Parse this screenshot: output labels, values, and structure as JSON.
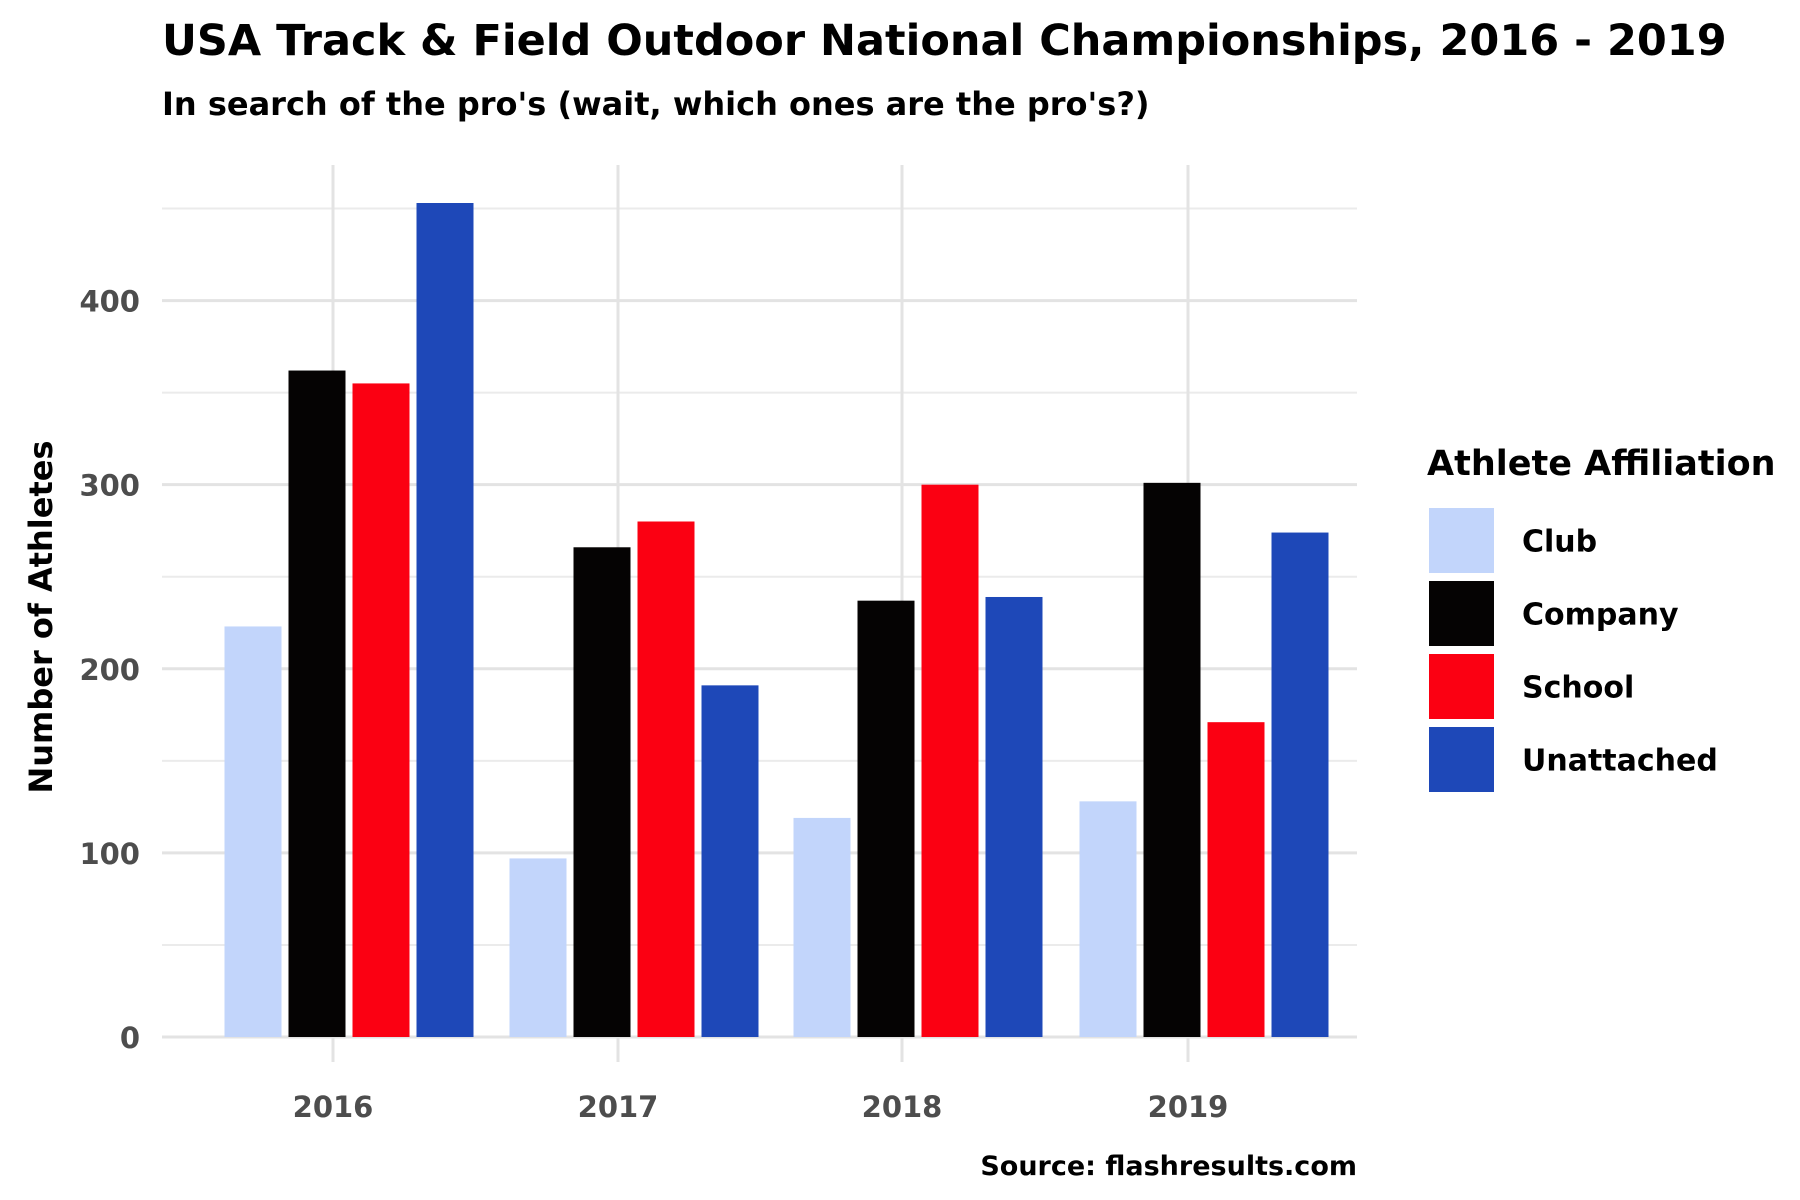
{
  "chart_data": {
    "type": "bar",
    "title": "USA Track & Field Outdoor National Championships, 2016 - 2019",
    "subtitle": "In search of the pro's (wait, which ones are the pro's?)",
    "xlabel": "",
    "ylabel": "Number of Athletes",
    "categories": [
      "2016",
      "2017",
      "2018",
      "2019"
    ],
    "series": [
      {
        "name": "Club",
        "color": "#c2d5fb",
        "values": [
          223,
          97,
          119,
          128
        ]
      },
      {
        "name": "Company",
        "color": "#050303",
        "values": [
          362,
          266,
          237,
          301
        ]
      },
      {
        "name": "School",
        "color": "#fb0012",
        "values": [
          355,
          280,
          300,
          171
        ]
      },
      {
        "name": "Unattached",
        "color": "#1e48b8",
        "values": [
          453,
          191,
          239,
          274
        ]
      }
    ],
    "ylim": [
      0,
      453
    ],
    "yticks": [
      0,
      100,
      200,
      300,
      400
    ],
    "grid": true,
    "legend": {
      "title": "Athlete Affiliation",
      "position": "right"
    },
    "caption": "Source: flashresults.com"
  }
}
